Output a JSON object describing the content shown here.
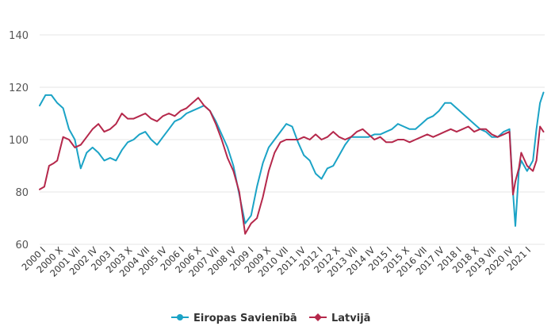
{
  "chart_data": {
    "type": "line",
    "title": "",
    "xlabel": "",
    "ylabel": "",
    "ylim": [
      60,
      140
    ],
    "y_ticks": [
      60,
      80,
      100,
      120,
      140
    ],
    "grid": true,
    "legend_position": "bottom-center",
    "x_tick_labels": [
      "2000 I",
      "2000 X",
      "2001 VII",
      "2002 IV",
      "2003 I",
      "2003 X",
      "2004 VII",
      "2005 IV",
      "2006 I",
      "2006 X",
      "2007 VII",
      "2008 IV",
      "2009 I",
      "2009 X",
      "2010 VII",
      "2011 IV",
      "2012 I",
      "2012 X",
      "2013 VII",
      "2014 IV",
      "2015 I",
      "2015 X",
      "2016 VII",
      "2017 IV",
      "2018 I",
      "2018 X",
      "2019 VII",
      "2020 IV",
      "2021 I"
    ],
    "x_range": [
      2000.0,
      2021.5
    ],
    "series": [
      {
        "name": "Eiropas Savienībā",
        "color": "#1ba3c6",
        "marker": "circle",
        "x": [
          2000.0,
          2000.25,
          2000.5,
          2000.75,
          2001.0,
          2001.25,
          2001.5,
          2001.75,
          2002.0,
          2002.25,
          2002.5,
          2002.75,
          2003.0,
          2003.25,
          2003.5,
          2003.75,
          2004.0,
          2004.25,
          2004.5,
          2004.75,
          2005.0,
          2005.25,
          2005.5,
          2005.75,
          2006.0,
          2006.25,
          2006.5,
          2006.75,
          2007.0,
          2007.25,
          2007.5,
          2007.75,
          2008.0,
          2008.25,
          2008.5,
          2008.75,
          2009.0,
          2009.25,
          2009.5,
          2009.75,
          2010.0,
          2010.25,
          2010.5,
          2010.75,
          2011.0,
          2011.25,
          2011.5,
          2011.75,
          2012.0,
          2012.25,
          2012.5,
          2012.75,
          2013.0,
          2013.25,
          2013.5,
          2013.75,
          2014.0,
          2014.25,
          2014.5,
          2014.75,
          2015.0,
          2015.25,
          2015.5,
          2015.75,
          2016.0,
          2016.25,
          2016.5,
          2016.75,
          2017.0,
          2017.25,
          2017.5,
          2017.75,
          2018.0,
          2018.25,
          2018.5,
          2018.75,
          2019.0,
          2019.25,
          2019.5,
          2019.75,
          2020.0,
          2020.15,
          2020.25,
          2020.4,
          2020.5,
          2020.75,
          2021.0,
          2021.15,
          2021.3,
          2021.45
        ],
        "values": [
          113,
          117,
          117,
          114,
          112,
          104,
          100,
          89,
          95,
          97,
          95,
          92,
          93,
          92,
          96,
          99,
          100,
          102,
          103,
          100,
          98,
          101,
          104,
          107,
          108,
          110,
          111,
          112,
          113,
          111,
          107,
          102,
          97,
          90,
          79,
          68,
          71,
          82,
          91,
          97,
          100,
          103,
          106,
          105,
          99,
          94,
          92,
          87,
          85,
          89,
          90,
          94,
          98,
          101,
          101,
          101,
          101,
          102,
          102,
          103,
          104,
          106,
          105,
          104,
          104,
          106,
          108,
          109,
          111,
          114,
          114,
          112,
          110,
          108,
          106,
          104,
          103,
          101,
          101,
          103,
          104,
          80,
          67,
          88,
          92,
          88,
          92,
          104,
          114,
          118
        ]
      },
      {
        "name": "Latvijā",
        "color": "#b5284b",
        "marker": "diamond",
        "x": [
          2000.0,
          2000.2,
          2000.4,
          2000.6,
          2000.75,
          2001.0,
          2001.25,
          2001.5,
          2001.75,
          2002.0,
          2002.25,
          2002.5,
          2002.75,
          2003.0,
          2003.25,
          2003.5,
          2003.75,
          2004.0,
          2004.25,
          2004.5,
          2004.75,
          2005.0,
          2005.25,
          2005.5,
          2005.75,
          2006.0,
          2006.25,
          2006.5,
          2006.75,
          2007.0,
          2007.25,
          2007.5,
          2007.75,
          2008.0,
          2008.25,
          2008.5,
          2008.75,
          2009.0,
          2009.25,
          2009.5,
          2009.75,
          2010.0,
          2010.25,
          2010.5,
          2010.75,
          2011.0,
          2011.25,
          2011.5,
          2011.75,
          2012.0,
          2012.25,
          2012.5,
          2012.75,
          2013.0,
          2013.25,
          2013.5,
          2013.75,
          2014.0,
          2014.25,
          2014.5,
          2014.75,
          2015.0,
          2015.25,
          2015.5,
          2015.75,
          2016.0,
          2016.25,
          2016.5,
          2016.75,
          2017.0,
          2017.25,
          2017.5,
          2017.75,
          2018.0,
          2018.25,
          2018.5,
          2018.75,
          2019.0,
          2019.25,
          2019.5,
          2019.75,
          2020.0,
          2020.15,
          2020.25,
          2020.4,
          2020.5,
          2020.75,
          2021.0,
          2021.15,
          2021.3,
          2021.45
        ],
        "values": [
          81,
          82,
          90,
          91,
          92,
          101,
          100,
          97,
          98,
          101,
          104,
          106,
          103,
          104,
          106,
          110,
          108,
          108,
          109,
          110,
          108,
          107,
          109,
          110,
          109,
          111,
          112,
          114,
          116,
          113,
          111,
          106,
          100,
          93,
          88,
          80,
          64,
          68,
          70,
          78,
          88,
          95,
          99,
          100,
          100,
          100,
          101,
          100,
          102,
          100,
          101,
          103,
          101,
          100,
          101,
          103,
          104,
          102,
          100,
          101,
          99,
          99,
          100,
          100,
          99,
          100,
          101,
          102,
          101,
          102,
          103,
          104,
          103,
          104,
          105,
          103,
          104,
          104,
          102,
          101,
          102,
          103,
          79,
          84,
          89,
          95,
          90,
          88,
          92,
          105,
          103
        ]
      }
    ]
  }
}
